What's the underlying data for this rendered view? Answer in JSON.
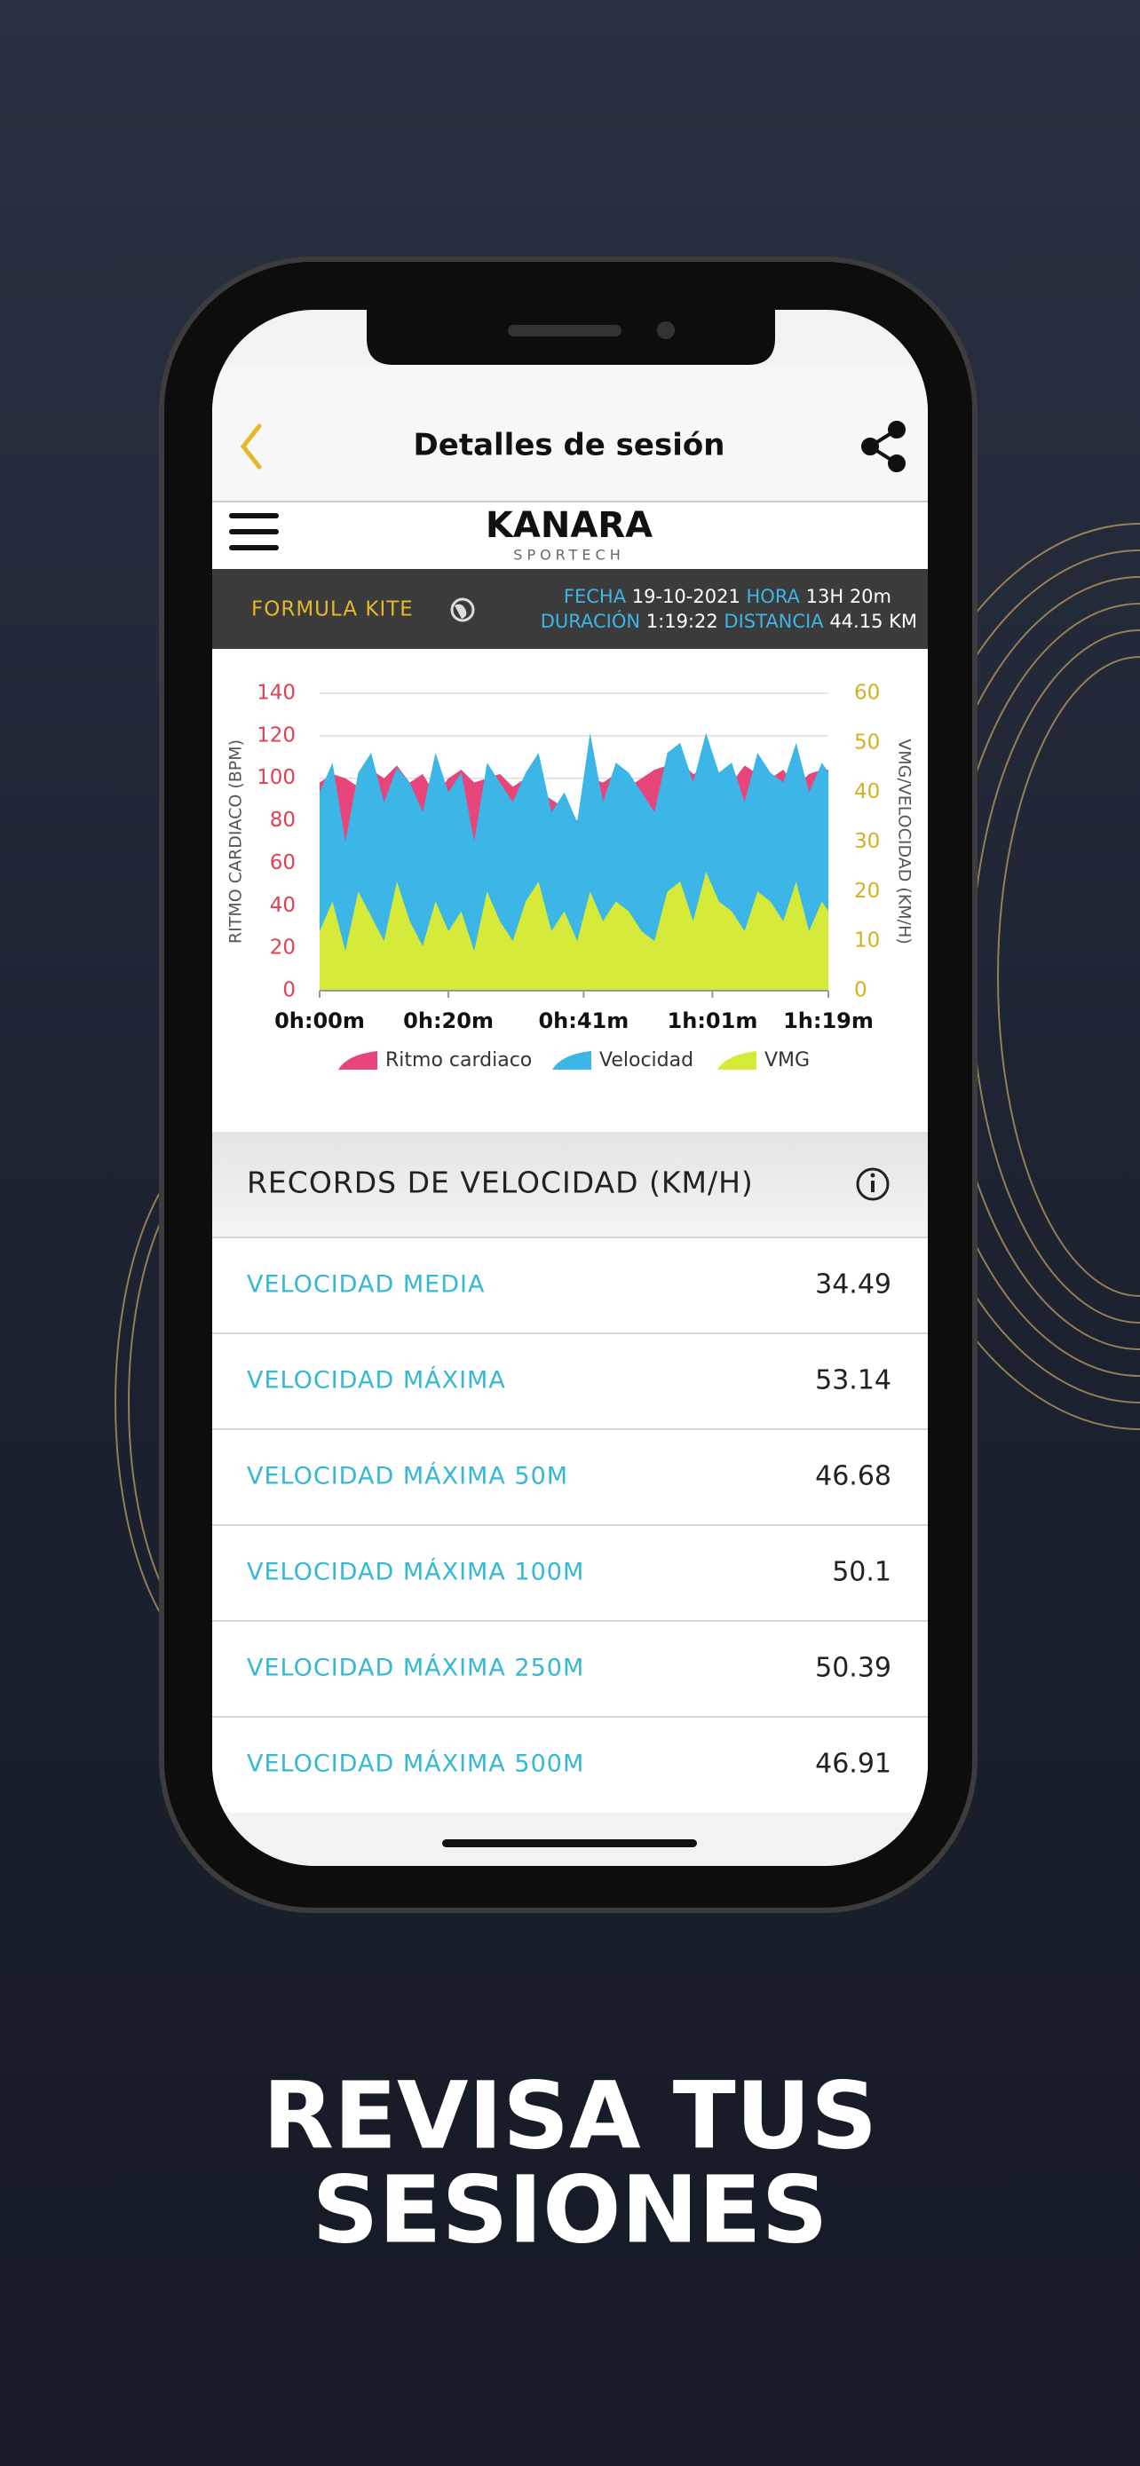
{
  "header": {
    "title": "Detalles de sesión"
  },
  "logo": {
    "name": "KANARA",
    "sub": "SPORTECH"
  },
  "session": {
    "class": "FORMULA KITE",
    "date_label": "FECHA",
    "date": "19-10-2021",
    "time_label": "HORA",
    "time": "13H 20m",
    "duration_label": "DURACIÓN",
    "duration": "1:19:22",
    "distance_label": "DISTANCIA",
    "distance": "44.15 KM"
  },
  "chart_data": {
    "type": "area",
    "ylabel": "RITMO CARDIACO (BPM)",
    "y2label": "VMG/VELOCIDAD (KM/H)",
    "x": [
      0,
      2,
      4,
      6,
      8,
      10,
      12,
      14,
      16,
      18,
      20,
      22,
      24,
      26,
      28,
      30,
      32,
      34,
      36,
      38,
      40,
      42,
      44,
      46,
      48,
      50,
      52,
      54,
      56,
      58,
      60,
      62,
      64,
      66,
      68,
      70,
      72,
      74,
      76,
      78,
      79
    ],
    "xlim": [
      0,
      79
    ],
    "xticks": [
      {
        "value": 0,
        "label": "0h:00m"
      },
      {
        "value": 20,
        "label": "0h:20m"
      },
      {
        "value": 41,
        "label": "0h:41m"
      },
      {
        "value": 61,
        "label": "1h:01m"
      },
      {
        "value": 79,
        "label": "1h:19m"
      }
    ],
    "ylim": [
      0,
      140
    ],
    "yticks": [
      0,
      20,
      40,
      60,
      80,
      100,
      120,
      140
    ],
    "y2lim": [
      0,
      60
    ],
    "y2ticks": [
      0,
      10,
      20,
      30,
      40,
      50,
      60
    ],
    "grid": true,
    "series": [
      {
        "name": "Ritmo cardiaco",
        "color": "#e8457a",
        "values": [
          98,
          102,
          100,
          96,
          104,
          100,
          106,
          98,
          102,
          92,
          100,
          104,
          98,
          100,
          102,
          96,
          100,
          94,
          90,
          86,
          80,
          100,
          98,
          102,
          96,
          100,
          104,
          106,
          108,
          102,
          104,
          100,
          98,
          106,
          102,
          100,
          104,
          96,
          102,
          104,
          104
        ]
      },
      {
        "name": "Velocidad",
        "color": "#3bb6e6",
        "axis": "y2",
        "values": [
          40,
          46,
          30,
          44,
          48,
          38,
          45,
          42,
          36,
          48,
          40,
          44,
          30,
          46,
          42,
          38,
          44,
          48,
          36,
          40,
          34,
          52,
          38,
          46,
          44,
          40,
          36,
          48,
          50,
          42,
          52,
          44,
          46,
          38,
          48,
          44,
          42,
          50,
          40,
          46,
          44
        ]
      },
      {
        "name": "VMG",
        "color": "#d6ea3a",
        "axis": "y2",
        "values": [
          12,
          18,
          8,
          20,
          15,
          10,
          22,
          14,
          9,
          18,
          12,
          16,
          8,
          20,
          14,
          10,
          18,
          22,
          12,
          16,
          10,
          20,
          14,
          18,
          16,
          12,
          10,
          20,
          22,
          14,
          24,
          18,
          16,
          12,
          20,
          18,
          14,
          22,
          12,
          18,
          16
        ]
      }
    ]
  },
  "records": {
    "title": "RECORDS DE VELOCIDAD (KM/H)",
    "rows": [
      {
        "label": "VELOCIDAD MEDIA",
        "value": 34.49
      },
      {
        "label": "VELOCIDAD MÁXIMA",
        "value": 53.14
      },
      {
        "label": "VELOCIDAD MÁXIMA 50M",
        "value": 46.68
      },
      {
        "label": "VELOCIDAD MÁXIMA 100M",
        "value": 50.1
      },
      {
        "label": "VELOCIDAD MÁXIMA 250M",
        "value": 50.39
      },
      {
        "label": "VELOCIDAD MÁXIMA 500M",
        "value": 46.91
      }
    ]
  },
  "tagline": [
    "REVISA TUS",
    "SESIONES"
  ]
}
